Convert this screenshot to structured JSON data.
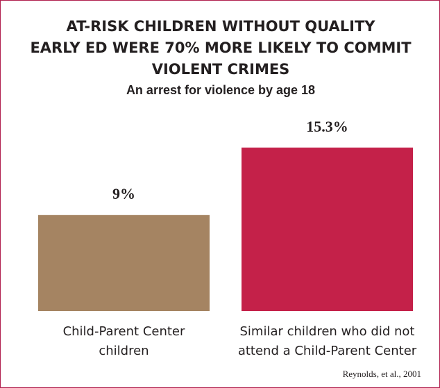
{
  "chart_data": {
    "type": "bar",
    "title": "AT-RISK CHILDREN WITHOUT QUALITY\nEARLY ED WERE 70% MORE LIKELY TO COMMIT\nVIOLENT CRIMES",
    "subtitle": "An arrest for violence by age 18",
    "categories": [
      "Child-Parent Center\nchildren",
      "Similar children who did not\nattend a Child-Parent Center"
    ],
    "values": [
      9,
      15.3
    ],
    "data_labels": [
      "9%",
      "15.3%"
    ],
    "colors": [
      "#a58462",
      "#c42149"
    ],
    "ylim": [
      0,
      15.3
    ],
    "grid": false,
    "legend": "none",
    "source": "Reynolds, et al., 2001"
  }
}
